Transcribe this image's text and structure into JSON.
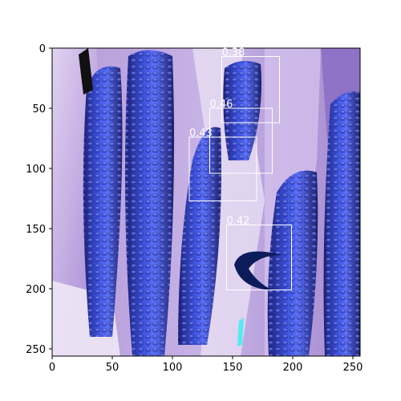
{
  "image": {
    "width": 256,
    "height": 256,
    "description_icon": "inverted-color-corn-photo"
  },
  "axes": {
    "xlim": [
      0,
      256
    ],
    "ylim": [
      256,
      0
    ],
    "xticks": [
      0,
      50,
      100,
      150,
      200,
      250
    ],
    "yticks": [
      0,
      50,
      100,
      150,
      200,
      250
    ]
  },
  "detections": [
    {
      "label": "0.38",
      "x1": 141,
      "y1": 7,
      "x2": 189,
      "y2": 62
    },
    {
      "label": "0.46",
      "x1": 131,
      "y1": 50,
      "x2": 183,
      "y2": 104
    },
    {
      "label": "0.43",
      "x1": 114,
      "y1": 74,
      "x2": 170,
      "y2": 127
    },
    {
      "label": "0.42",
      "x1": 145,
      "y1": 147,
      "x2": 199,
      "y2": 201
    }
  ],
  "colors": {
    "box": "#ffffff",
    "label": "#ffffff",
    "axis": "#000000"
  }
}
